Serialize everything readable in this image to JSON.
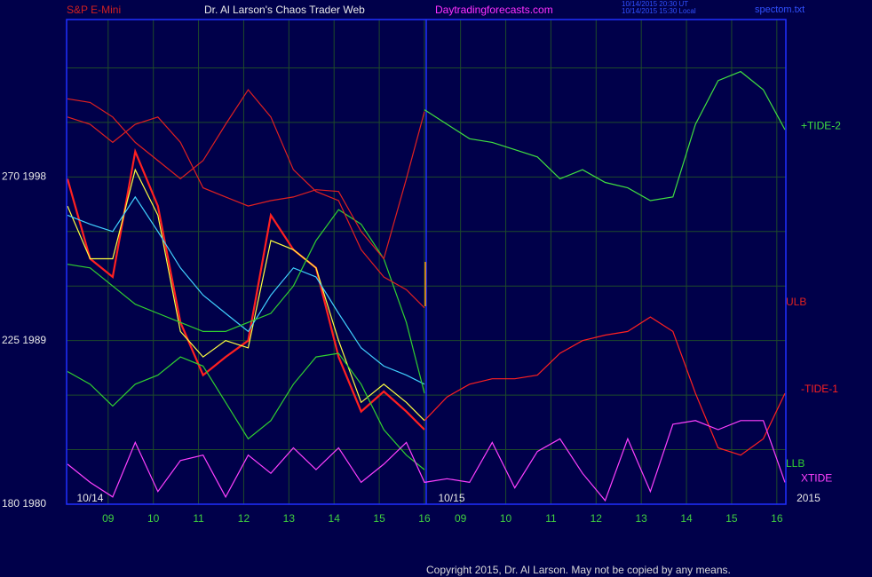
{
  "header": {
    "symbol": "S&P E-Mini",
    "title": "Dr. Al Larson's Chaos Trader Web",
    "site": "Daytradingforecasts.com",
    "time_ut": "10/14/2015 20:30 UT",
    "time_local": "10/14/2015 15:30 Local",
    "file": "spectom.txt"
  },
  "footer": "Copyright 2015, Dr. Al Larson. May not be copied by any means.",
  "chart_data": {
    "type": "line",
    "x": [
      8.1,
      8.6,
      9.1,
      9.6,
      10.1,
      10.6,
      11.1,
      11.6,
      12.1,
      12.6,
      13.1,
      13.6,
      14.1,
      14.6,
      15.1,
      15.6,
      16.0,
      16.5,
      17.0,
      17.5,
      18.0,
      18.5,
      19.0,
      19.5,
      20.0,
      20.5,
      21.0,
      21.5,
      22.0,
      22.5,
      23.0,
      23.5,
      23.98
    ],
    "xlim": [
      8.08,
      24.0
    ],
    "xticks": [
      {
        "value": 9,
        "label": "09"
      },
      10,
      11,
      12,
      13,
      14,
      15,
      16,
      {
        "value": 16.8,
        "label": "09"
      },
      {
        "value": 17.8,
        "label": "10"
      },
      {
        "value": 18.8,
        "label": "11"
      },
      {
        "value": 19.8,
        "label": "12"
      },
      {
        "value": 20.8,
        "label": "13"
      },
      {
        "value": 21.8,
        "label": "14"
      },
      {
        "value": 22.8,
        "label": "15"
      },
      {
        "value": 23.8,
        "label": "16"
      }
    ],
    "ylim": [
      1980,
      2006.66
    ],
    "yticks": [
      {
        "value": 1998,
        "label": "270  1998"
      },
      {
        "value": 1989,
        "label": "225  1989"
      },
      {
        "value": 1980,
        "label": "180  1980"
      }
    ],
    "grid_lines": [
      1983,
      1986,
      1992,
      1995,
      2001,
      2004
    ],
    "grid": true,
    "day_labels": [
      {
        "value": 8.6,
        "label": "10/14"
      },
      {
        "value": 16.6,
        "label": "10/15"
      },
      {
        "value": 24.5,
        "label": "2015"
      }
    ],
    "annotations": [
      "ULB",
      "LLB"
    ],
    "series": [
      {
        "color": "#ff2020",
        "values": [
          1997.9,
          1993.5,
          1992.5,
          1999.4,
          1996.4,
          1990.0,
          1987.1,
          1988.1,
          1989.0,
          1995.9,
          1994.0,
          1993.0,
          1988.1,
          1985.1,
          1986.2,
          1985.1,
          1984.1,
          null,
          null,
          null,
          null,
          null,
          null,
          null,
          null,
          null,
          null,
          null,
          null,
          null,
          null,
          null,
          null
        ]
      },
      {
        "color": "#ffff40",
        "values": [
          1996.4,
          1993.5,
          1993.5,
          1998.4,
          1995.9,
          1989.5,
          1988.1,
          1989.0,
          1988.6,
          1994.5,
          1994.0,
          1993.0,
          1989.0,
          1985.6,
          1986.6,
          1985.6,
          1984.6,
          null,
          null,
          null,
          null,
          null,
          null,
          null,
          null,
          null,
          null,
          null,
          null,
          null,
          null,
          null,
          null
        ]
      },
      {
        "color": "#40d0ff",
        "values": [
          1995.9,
          1995.4,
          1995.0,
          1996.9,
          1995.0,
          1993.0,
          1991.5,
          1990.5,
          1989.5,
          1991.5,
          1993.0,
          1992.5,
          1990.5,
          1988.6,
          1987.6,
          1987.1,
          1986.6,
          null,
          null,
          null,
          null,
          null,
          null,
          null,
          null,
          null,
          null,
          null,
          null,
          null,
          null,
          null,
          null
        ]
      },
      {
        "color": "#30d030",
        "values": [
          1993.2,
          1993.0,
          1992.0,
          1991.0,
          1990.5,
          1990.0,
          1989.5,
          1989.5,
          1990.0,
          1990.5,
          1992.0,
          1994.5,
          1996.2,
          1995.4,
          1993.5,
          1990.0,
          1986.1,
          null,
          null,
          null,
          null,
          null,
          null,
          null,
          null,
          null,
          null,
          null,
          null,
          null,
          null,
          null,
          null
        ]
      },
      {
        "color": "#30d030",
        "values": [
          1987.3,
          1986.6,
          1985.4,
          1986.6,
          1987.1,
          1988.1,
          1987.6,
          1985.6,
          1983.6,
          1984.6,
          1986.6,
          1988.1,
          1988.3,
          1986.6,
          1984.1,
          1982.7,
          1981.9,
          null,
          null,
          null,
          null,
          null,
          null,
          null,
          null,
          null,
          null,
          null,
          null,
          null,
          null,
          null,
          null
        ]
      },
      {
        "color": "#e02020",
        "values": [
          2002.3,
          2002.1,
          2001.3,
          1999.9,
          1998.9,
          1997.9,
          1998.9,
          2000.9,
          2002.8,
          2001.3,
          1998.4,
          1997.2,
          1996.7,
          1994.0,
          1992.5,
          1991.8,
          1990.8,
          null,
          null,
          null,
          null,
          null,
          null,
          null,
          null,
          null,
          null,
          null,
          null,
          null,
          null,
          null,
          null
        ]
      },
      {
        "color": "#e02020",
        "values": [
          2001.3,
          2000.9,
          1999.9,
          2000.9,
          2001.3,
          1999.9,
          1997.4,
          1996.9,
          1996.4,
          1996.7,
          1996.9,
          1997.3,
          1997.2,
          1995.0,
          1993.5,
          1997.9,
          2001.6,
          null,
          null,
          null,
          null,
          null,
          null,
          null,
          null,
          null,
          null,
          null,
          null,
          null,
          null,
          null,
          null
        ]
      },
      {
        "name": "+TIDE-2",
        "color": "#40e040",
        "values": [
          null,
          null,
          null,
          null,
          null,
          null,
          null,
          null,
          null,
          null,
          null,
          null,
          null,
          null,
          null,
          null,
          2001.7,
          2000.9,
          2000.1,
          1999.9,
          1999.5,
          1999.1,
          1997.9,
          1998.4,
          1997.7,
          1997.4,
          1996.7,
          1996.9,
          2000.9,
          2003.3,
          2003.8,
          2002.8,
          2000.6
        ]
      },
      {
        "name": "-TIDE-1",
        "color": "#ff2020",
        "values": [
          null,
          null,
          null,
          null,
          null,
          null,
          null,
          null,
          null,
          null,
          null,
          null,
          null,
          null,
          null,
          null,
          1984.6,
          1985.9,
          1986.6,
          1986.9,
          1986.9,
          1987.1,
          1988.3,
          1989.0,
          1989.3,
          1989.5,
          1990.3,
          1989.5,
          1986.1,
          1983.1,
          1982.7,
          1983.6,
          1986.1
        ]
      },
      {
        "name": "XTIDE",
        "color": "#ff40ff",
        "values": [
          1982.2,
          1981.2,
          1980.4,
          1983.4,
          1980.7,
          1982.4,
          1982.7,
          1980.4,
          1982.7,
          1981.7,
          1983.1,
          1981.9,
          1983.1,
          1981.2,
          1982.2,
          1983.4,
          1981.2,
          1981.4,
          1981.2,
          1983.4,
          1980.9,
          1982.9,
          1983.6,
          1981.7,
          1980.2,
          1983.6,
          1980.7,
          1984.4,
          1984.6,
          1984.1,
          1984.6,
          1984.6,
          1981.2
        ]
      }
    ]
  }
}
